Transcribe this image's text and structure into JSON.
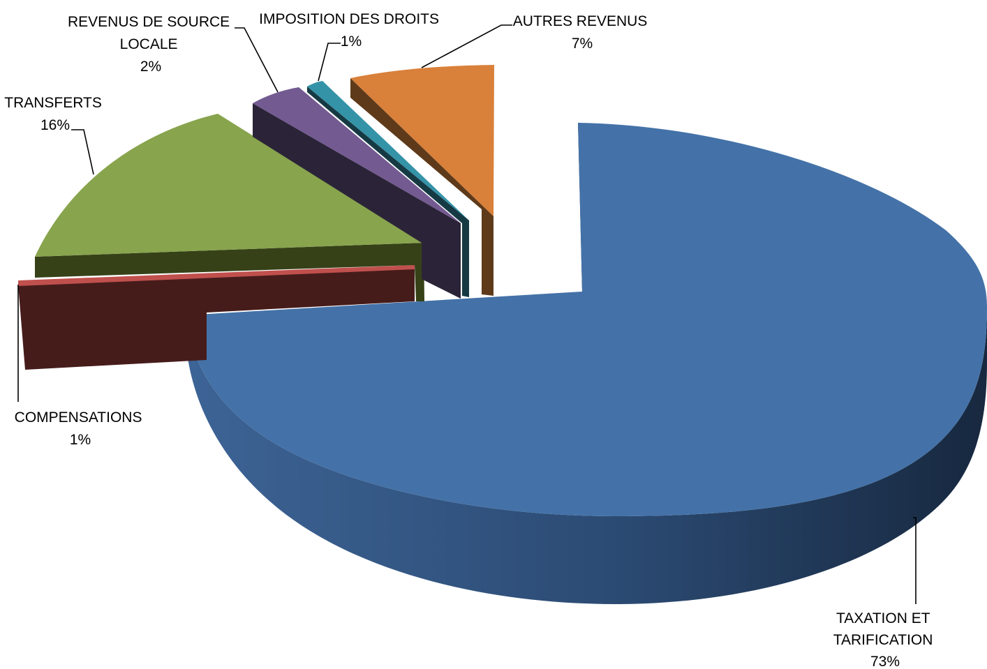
{
  "chart_data": {
    "type": "pie",
    "style": "3d-exploded",
    "title": "",
    "legend": "none",
    "slices": [
      {
        "name": "TAXATION ET TARIFICATION",
        "label_lines": [
          "TAXATION ET",
          "TARIFICATION"
        ],
        "pct_label": "73%",
        "value": 73,
        "color": "#4472A8"
      },
      {
        "name": "COMPENSATIONS",
        "label_lines": [
          "COMPENSATIONS"
        ],
        "pct_label": "1%",
        "value": 1,
        "color": "#C0504D"
      },
      {
        "name": "TRANSFERTS",
        "label_lines": [
          "TRANSFERTS"
        ],
        "pct_label": "16%",
        "value": 16,
        "color": "#88A44D"
      },
      {
        "name": "REVENUS DE SOURCE LOCALE",
        "label_lines": [
          "REVENUS DE SOURCE",
          "LOCALE"
        ],
        "pct_label": "2%",
        "value": 2,
        "color": "#735A91"
      },
      {
        "name": "IMPOSITION DES DROITS",
        "label_lines": [
          "IMPOSITION DES DROITS"
        ],
        "pct_label": "1%",
        "value": 1,
        "color": "#3593A8"
      },
      {
        "name": "AUTRES REVENUS",
        "label_lines": [
          "AUTRES REVENUS"
        ],
        "pct_label": "7%",
        "value": 7,
        "color": "#D9803A"
      }
    ]
  }
}
